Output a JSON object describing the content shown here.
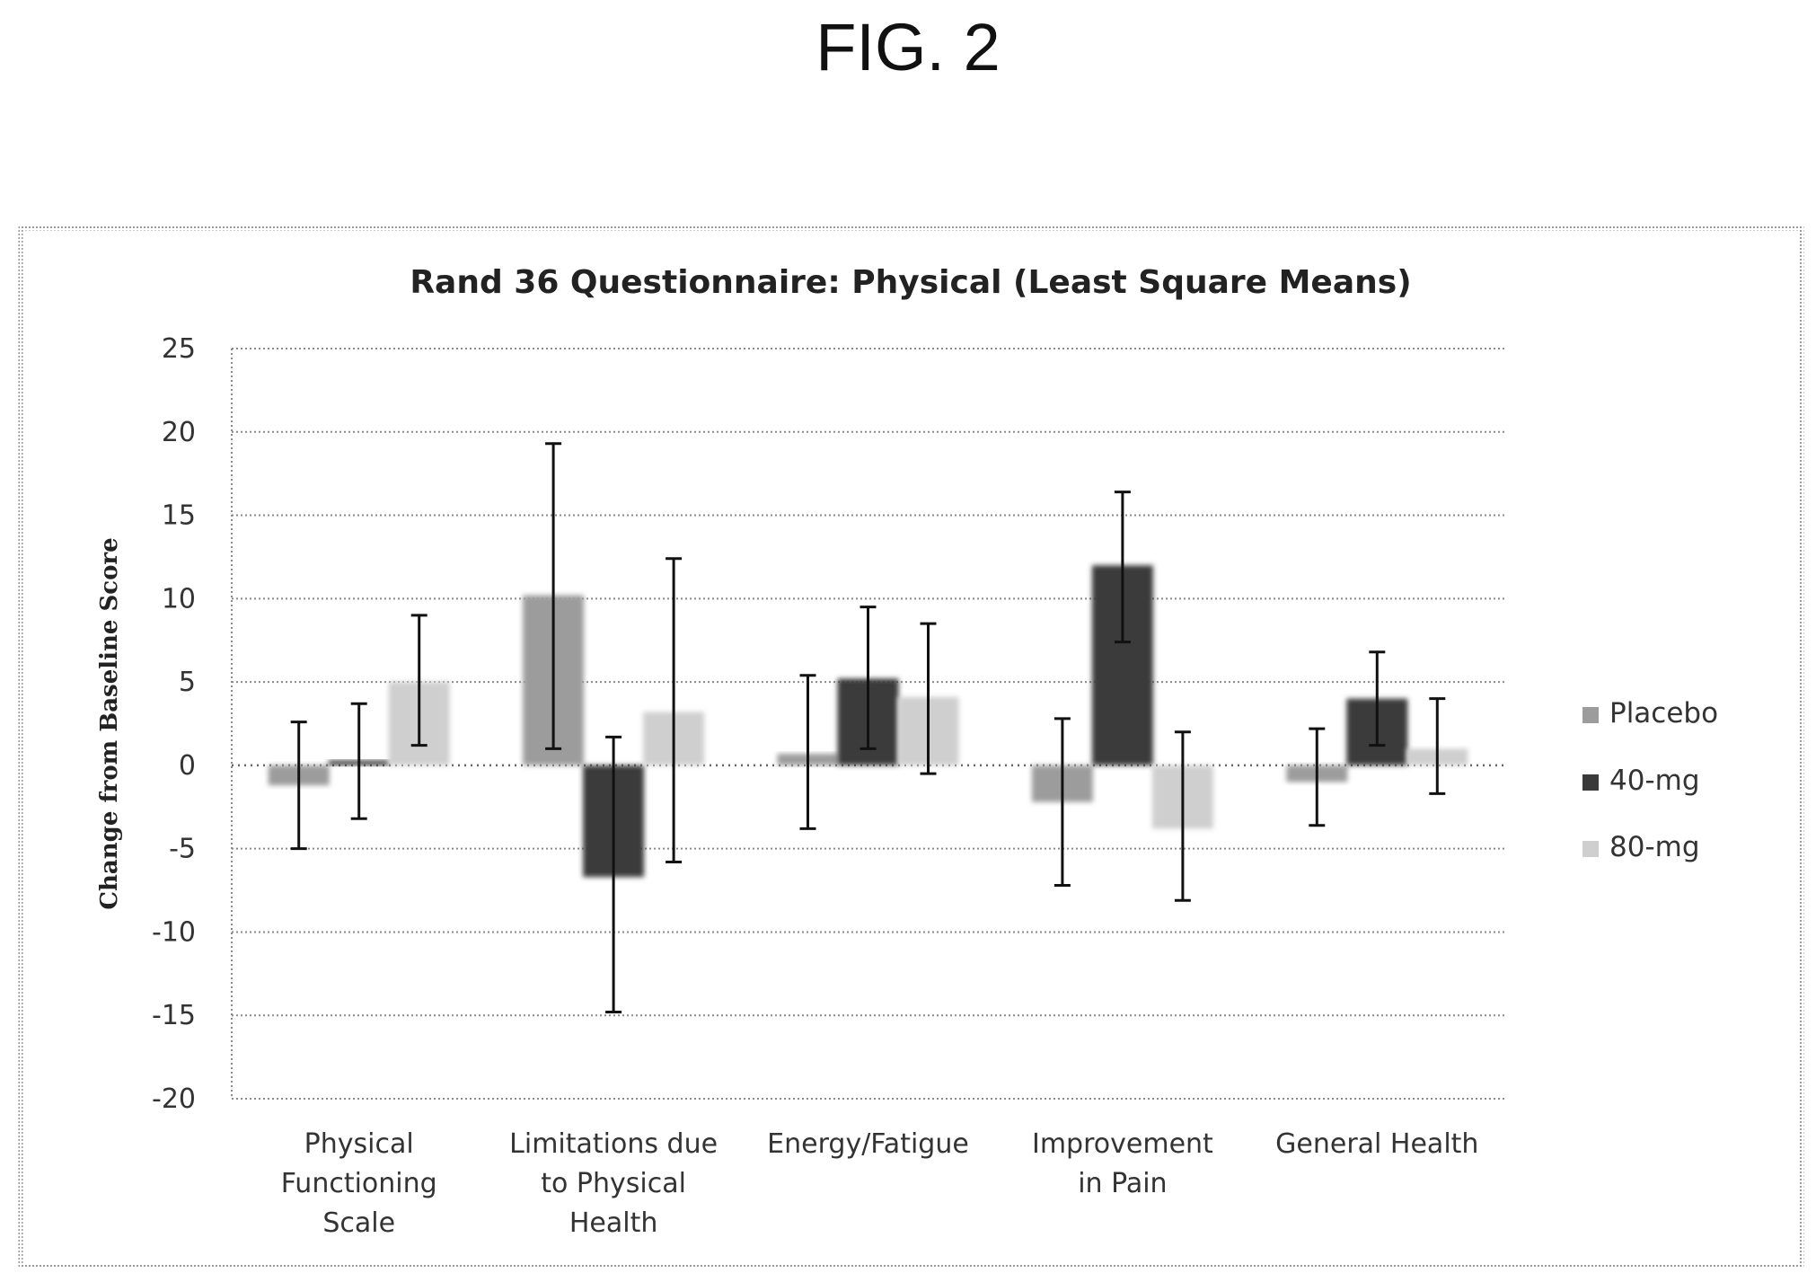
{
  "figure": {
    "label": "FIG. 2"
  },
  "colors": {
    "placebo": "#9c9c9c",
    "mg40": "#3a3a3a",
    "mg80": "#cfcfcf"
  },
  "chart_data": {
    "type": "bar",
    "title": "Rand 36 Questionnaire: Physical (Least Square Means)",
    "ylabel": "Change from Baseline Score",
    "xlabel": "",
    "ylim": [
      -20,
      25
    ],
    "yticks": [
      25,
      20,
      15,
      10,
      5,
      0,
      -5,
      -10,
      -15,
      -20
    ],
    "grid": true,
    "legend_position": "right",
    "categories": [
      [
        "Physical",
        "Functioning",
        "Scale"
      ],
      [
        "Limitations due",
        "to Physical",
        "Health"
      ],
      [
        "Energy/Fatigue"
      ],
      [
        "Improvement",
        "in Pain"
      ],
      [
        "General Health"
      ]
    ],
    "series": [
      {
        "name": "Placebo",
        "values": [
          -1.2,
          10.2,
          0.7,
          -2.2,
          -1.0
        ],
        "err_low": [
          -5.0,
          1.0,
          -3.8,
          -7.2,
          -3.6
        ],
        "err_high": [
          2.6,
          19.3,
          5.4,
          2.8,
          2.2
        ]
      },
      {
        "name": "40-mg",
        "values": [
          0.3,
          -6.7,
          5.2,
          12.0,
          4.0
        ],
        "err_low": [
          -3.2,
          -14.8,
          1.0,
          7.4,
          1.2
        ],
        "err_high": [
          3.7,
          1.7,
          9.5,
          16.4,
          6.8
        ]
      },
      {
        "name": "80-mg",
        "values": [
          5.0,
          3.2,
          4.1,
          -3.8,
          1.0
        ],
        "err_low": [
          1.2,
          -5.8,
          -0.5,
          -8.1,
          -1.7
        ],
        "err_high": [
          9.0,
          12.4,
          8.5,
          2.0,
          4.0
        ]
      }
    ]
  }
}
